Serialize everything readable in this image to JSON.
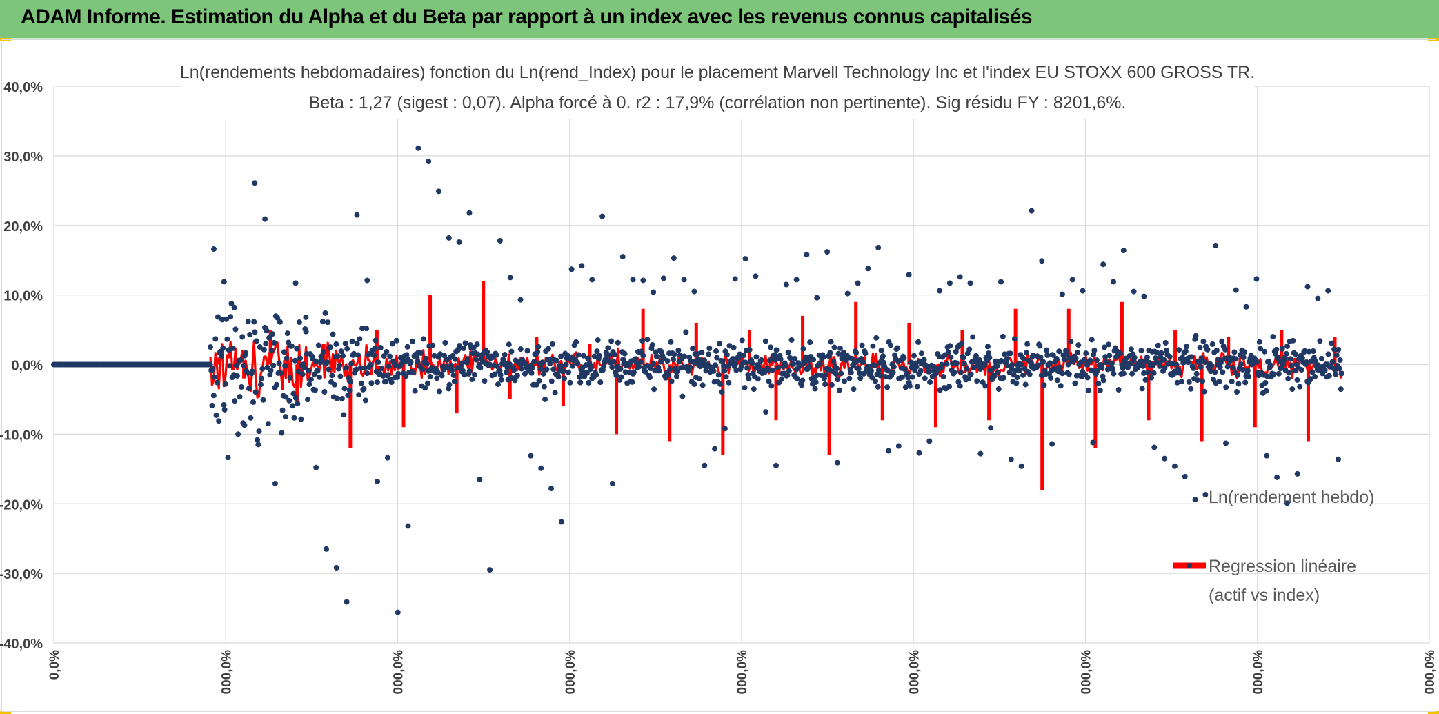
{
  "header": {
    "title": "ADAM Informe. Estimation du Alpha et du Beta par rapport à un index avec les revenus connus capitalisés"
  },
  "colors": {
    "header_bg": "#7dc57b",
    "accent_corner": "#f2c200",
    "series_points": "#1f3864",
    "series_regression": "#ff0000",
    "gridline": "#d9d9d9"
  },
  "chart_data": {
    "type": "scatter",
    "title": "Ln(rendements hebdomadaires) fonction du Ln(rend_Index) pour le placement Marvell Technology Inc et l'index EU STOXX 600 GROSS TR.",
    "subtitle": "Beta : 1,27 (sigest : 0,07). Alpha forcé à 0. r2 : 17,9% (corrélation non pertinente). Sig résidu FY : 8201,6%.",
    "ylim": [
      -0.4,
      0.4
    ],
    "y_ticks": [
      "40,0%",
      "30,0%",
      "20,0%",
      "10,0%",
      "0,0%",
      "-10,0%",
      "-20,0%",
      "-30,0%",
      "-40,0%"
    ],
    "x_ticks": [
      "0,0%",
      "000,0%",
      "000,0%",
      "000,0%",
      "000,0%",
      "000,0%",
      "000,0%",
      "000,0%",
      "000,0%"
    ],
    "grid": true,
    "legend": {
      "position": "right",
      "items": [
        "Ln(rendement hebdo)",
        "Regression linéaire",
        "(actif vs index)"
      ]
    },
    "series": [
      {
        "name": "Ln(rendement hebdo)",
        "kind": "scatter",
        "color": "#1f3864",
        "note_zero_segment_end_index": 180,
        "values": [
          0.166,
          0.119,
          0.082,
          -0.087,
          0.261,
          0.209,
          -0.171,
          -0.075,
          0.117,
          0.068,
          -0.148,
          -0.265,
          -0.292,
          -0.341,
          0.215,
          0.121,
          -0.168,
          -0.134,
          -0.356,
          -0.232,
          0.311,
          0.292,
          0.249,
          0.182,
          0.176,
          0.218,
          -0.165,
          -0.295,
          0.178,
          0.125,
          0.093,
          -0.131,
          -0.149,
          -0.178,
          -0.226,
          0.137,
          0.142,
          0.122,
          0.213,
          -0.171,
          0.155,
          0.122,
          0.121,
          0.104,
          0.124,
          0.153,
          0.122,
          0.105,
          -0.145,
          -0.121,
          -0.092,
          0.123,
          0.152,
          0.127,
          -0.068,
          -0.145,
          0.115,
          0.122,
          0.158,
          0.096,
          0.162,
          -0.141,
          0.102,
          0.117,
          0.138,
          0.168,
          -0.124,
          -0.117,
          0.129,
          -0.127,
          -0.11,
          0.106,
          0.117,
          0.126,
          0.117,
          -0.128,
          -0.091,
          0.119,
          -0.136,
          -0.146,
          0.221,
          0.149,
          -0.114,
          0.101,
          0.122,
          0.106,
          -0.112,
          0.144,
          0.119,
          0.164,
          0.105,
          0.098,
          -0.119,
          -0.135,
          -0.146,
          -0.161,
          -0.194,
          -0.187,
          0.171,
          -0.113,
          0.107,
          0.083,
          0.123,
          -0.131,
          -0.162,
          -0.199,
          -0.157,
          0.112,
          0.095,
          0.106,
          -0.136
        ]
      },
      {
        "name": "Regression linéaire (actif vs index)",
        "kind": "line",
        "color": "#ff0000",
        "values": [
          0.01,
          -0.02,
          0.05,
          -0.06,
          0.03,
          -0.12,
          0.05,
          -0.09,
          0.1,
          -0.07,
          0.12,
          -0.05,
          0.04,
          -0.06,
          0.03,
          -0.1,
          0.08,
          -0.11,
          0.06,
          -0.13,
          0.05,
          -0.08,
          0.07,
          -0.13,
          0.09,
          -0.08,
          0.06,
          -0.09,
          0.05,
          -0.08,
          0.08,
          -0.18,
          0.08,
          -0.12,
          0.09,
          -0.08,
          0.05,
          -0.11,
          0.04,
          -0.09,
          0.05,
          -0.11,
          0.04
        ]
      }
    ]
  }
}
